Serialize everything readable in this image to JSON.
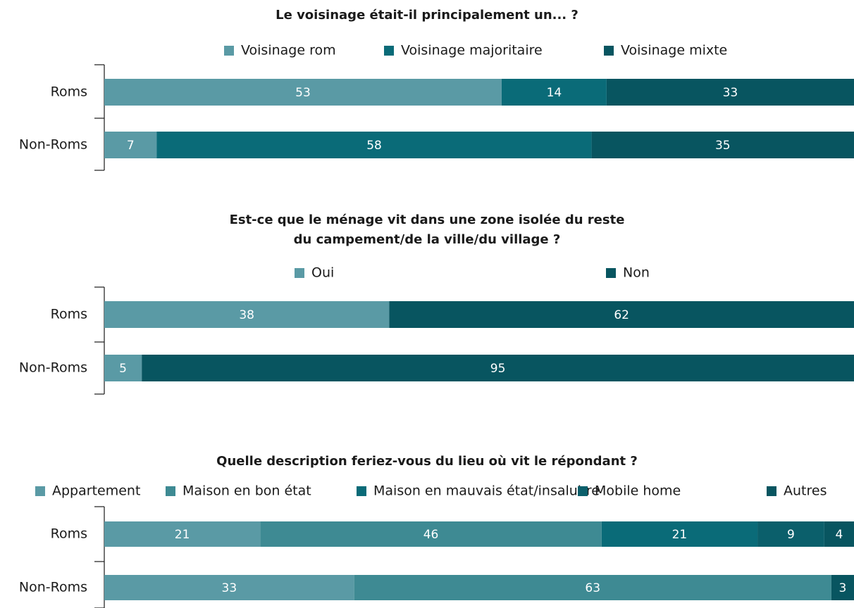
{
  "chart_data": [
    {
      "type": "bar",
      "orientation": "horizontal",
      "stacked": true,
      "title": [
        "Le voisinage était-il principalement un... ?"
      ],
      "categories": [
        "Roms",
        "Non-Roms"
      ],
      "series": [
        {
          "name": "Voisinage rom",
          "color": "#5a9aa5",
          "values": [
            53,
            7
          ]
        },
        {
          "name": "Voisinage majoritaire",
          "color": "#0a6b78",
          "values": [
            14,
            58
          ]
        },
        {
          "name": "Voisinage mixte",
          "color": "#085560",
          "values": [
            33,
            35
          ]
        }
      ]
    },
    {
      "type": "bar",
      "orientation": "horizontal",
      "stacked": true,
      "title": [
        "Est-ce que le ménage vit dans une zone isolée du reste",
        "du campement/de la ville/du village ?"
      ],
      "categories": [
        "Roms",
        "Non-Roms"
      ],
      "series": [
        {
          "name": "Oui",
          "color": "#5a9aa5",
          "values": [
            38,
            5
          ]
        },
        {
          "name": "Non",
          "color": "#085560",
          "values": [
            62,
            95
          ]
        }
      ]
    },
    {
      "type": "bar",
      "orientation": "horizontal",
      "stacked": true,
      "title": [
        "Quelle description feriez-vous du lieu où vit le répondant ?"
      ],
      "categories": [
        "Roms",
        "Non-Roms"
      ],
      "series": [
        {
          "name": "Appartement",
          "color": "#5a9aa5",
          "values": [
            21,
            33
          ]
        },
        {
          "name": "Maison en bon état",
          "color": "#3e8a93",
          "values": [
            46,
            63
          ]
        },
        {
          "name": "Maison en mauvais état/insalubre",
          "color": "#0a6b78",
          "values": [
            21,
            null
          ]
        },
        {
          "name": "Mobile home",
          "color": "#0b5f6b",
          "values": [
            9,
            null
          ]
        },
        {
          "name": "Autres",
          "color": "#085560",
          "values": [
            4,
            3
          ]
        }
      ]
    }
  ]
}
